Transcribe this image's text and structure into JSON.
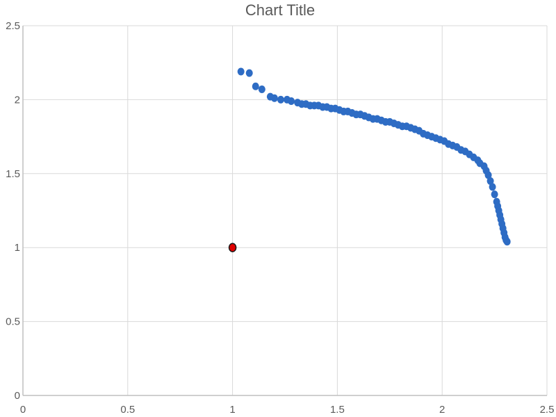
{
  "colors": {
    "series_fill": "#2e6cc4",
    "highlight_fill": "#e00000",
    "highlight_stroke": "#1a1a1a",
    "grid": "#d9d9d9",
    "text": "#595959"
  },
  "chart_data": {
    "type": "scatter",
    "title": "Chart Title",
    "xlabel": "",
    "ylabel": "",
    "xlim": [
      0,
      2.5
    ],
    "ylim": [
      0,
      2.5
    ],
    "x_ticks": [
      "0",
      "0.5",
      "1",
      "1.5",
      "2",
      "2.5"
    ],
    "y_ticks": [
      "0",
      "0.5",
      "1",
      "1.5",
      "2",
      "2.5"
    ],
    "grid": true,
    "legend": "none",
    "series": [
      {
        "x": [
          1.04,
          1.08,
          1.11,
          1.14,
          1.18,
          1.2,
          1.23,
          1.26,
          1.28,
          1.31,
          1.33,
          1.35,
          1.37,
          1.39,
          1.41,
          1.43,
          1.45,
          1.47,
          1.49,
          1.51,
          1.53,
          1.55,
          1.57,
          1.59,
          1.61,
          1.63,
          1.65,
          1.67,
          1.69,
          1.71,
          1.73,
          1.75,
          1.77,
          1.79,
          1.81,
          1.83,
          1.85,
          1.87,
          1.89,
          1.91,
          1.93,
          1.95,
          1.97,
          1.99,
          2.01,
          2.03,
          2.05,
          2.07,
          2.09,
          2.11,
          2.13,
          2.15,
          2.17,
          2.18,
          2.2,
          2.21,
          2.22,
          2.23,
          2.24,
          2.25,
          2.26,
          2.265,
          2.27,
          2.275,
          2.28,
          2.285,
          2.29,
          2.295,
          2.3,
          2.305,
          2.31
        ],
        "y": [
          2.19,
          2.18,
          2.09,
          2.07,
          2.02,
          2.01,
          2.0,
          2.0,
          1.99,
          1.98,
          1.97,
          1.97,
          1.96,
          1.96,
          1.96,
          1.95,
          1.95,
          1.94,
          1.94,
          1.93,
          1.92,
          1.92,
          1.91,
          1.9,
          1.9,
          1.89,
          1.88,
          1.87,
          1.87,
          1.86,
          1.85,
          1.85,
          1.84,
          1.83,
          1.82,
          1.82,
          1.81,
          1.8,
          1.79,
          1.77,
          1.76,
          1.75,
          1.74,
          1.73,
          1.72,
          1.7,
          1.69,
          1.68,
          1.66,
          1.65,
          1.63,
          1.61,
          1.59,
          1.57,
          1.55,
          1.52,
          1.49,
          1.45,
          1.41,
          1.36,
          1.31,
          1.28,
          1.25,
          1.22,
          1.19,
          1.16,
          1.13,
          1.1,
          1.07,
          1.05,
          1.04
        ]
      },
      {
        "x": [
          1.0
        ],
        "y": [
          1.0
        ]
      }
    ]
  }
}
